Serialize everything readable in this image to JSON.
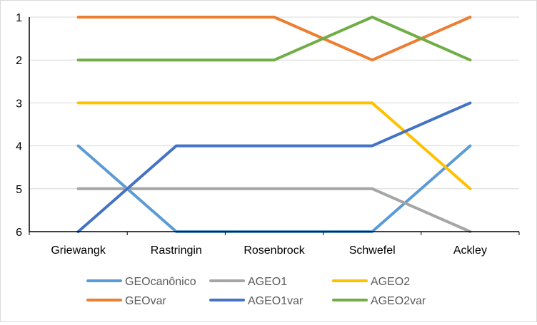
{
  "chart_data": {
    "type": "line",
    "title": "",
    "xlabel": "",
    "ylabel": "",
    "y_axis": {
      "range": [
        1,
        6
      ],
      "reversed": true,
      "ticks": [
        "1",
        "2",
        "3",
        "4",
        "5",
        "6"
      ]
    },
    "grid": "horizontal",
    "legend_position": "bottom",
    "categories": [
      "Griewangk",
      "Rastringin",
      "Rosenbrock",
      "Schwefel",
      "Ackley"
    ],
    "series": [
      {
        "name": "GEOcanônico",
        "color": "#5B9BD5",
        "values": [
          4,
          6,
          6,
          6,
          4
        ]
      },
      {
        "name": "AGEO1",
        "color": "#A5A5A5",
        "values": [
          5,
          5,
          5,
          5,
          6
        ]
      },
      {
        "name": "AGEO2",
        "color": "#FFC000",
        "values": [
          3,
          3,
          3,
          3,
          5
        ]
      },
      {
        "name": "GEOvar",
        "color": "#ED7D31",
        "values": [
          1,
          1,
          1,
          2,
          1
        ]
      },
      {
        "name": "AGEO1var",
        "color": "#4472C4",
        "values": [
          6,
          4,
          4,
          4,
          3
        ]
      },
      {
        "name": "AGEO2var",
        "color": "#70AD47",
        "values": [
          2,
          2,
          2,
          1,
          2
        ]
      }
    ]
  }
}
